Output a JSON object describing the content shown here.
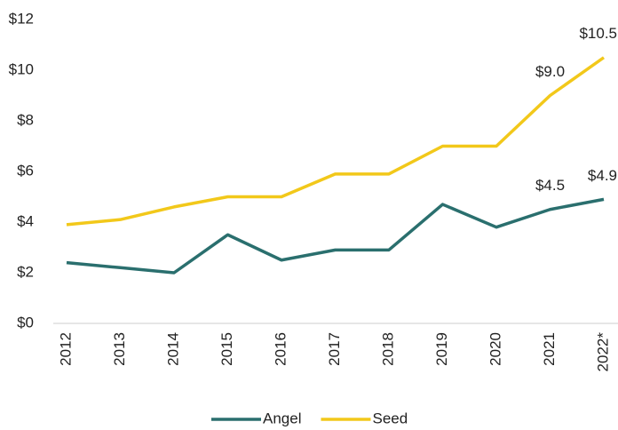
{
  "chart_data": {
    "type": "line",
    "categories": [
      "2012",
      "2013",
      "2014",
      "2015",
      "2016",
      "2017",
      "2018",
      "2019",
      "2020",
      "2021",
      "2022*"
    ],
    "series": [
      {
        "name": "Angel",
        "color": "#2a6f6e",
        "values": [
          2.4,
          2.2,
          2.0,
          3.5,
          2.5,
          2.9,
          2.9,
          4.7,
          3.8,
          4.5,
          4.9
        ],
        "value_labels": [
          null,
          null,
          null,
          null,
          null,
          null,
          null,
          null,
          null,
          "$4.5",
          "$4.9"
        ]
      },
      {
        "name": "Seed",
        "color": "#f2c81a",
        "values": [
          3.9,
          4.1,
          4.6,
          5.0,
          5.0,
          5.9,
          5.9,
          7.0,
          7.0,
          9.0,
          10.5
        ],
        "value_labels": [
          null,
          null,
          null,
          null,
          null,
          null,
          null,
          null,
          null,
          "$9.0",
          "$10.5"
        ]
      }
    ],
    "ylim": [
      0,
      12
    ],
    "yticks": [
      {
        "value": 0,
        "label": "$0"
      },
      {
        "value": 2,
        "label": "$2"
      },
      {
        "value": 4,
        "label": "$4"
      },
      {
        "value": 6,
        "label": "$6"
      },
      {
        "value": 8,
        "label": "$8"
      },
      {
        "value": 10,
        "label": "$10"
      },
      {
        "value": 12,
        "label": "$12"
      }
    ],
    "grid": false,
    "legend": "bottom"
  }
}
